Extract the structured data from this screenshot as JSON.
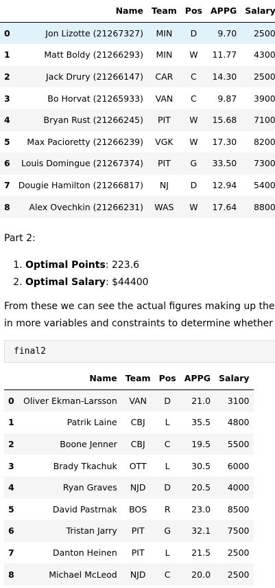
{
  "table1": {
    "columns": [
      "Name",
      "Team",
      "Pos",
      "APPG",
      "Salary"
    ],
    "rows": [
      {
        "idx": "0",
        "name": "Jon Lizotte (21267327)",
        "team": "MIN",
        "pos": "D",
        "appg": "9.70",
        "salary": "2500"
      },
      {
        "idx": "1",
        "name": "Matt Boldy (21266293)",
        "team": "MIN",
        "pos": "W",
        "appg": "11.77",
        "salary": "4300"
      },
      {
        "idx": "2",
        "name": "Jack Drury (21266147)",
        "team": "CAR",
        "pos": "C",
        "appg": "14.30",
        "salary": "2500"
      },
      {
        "idx": "3",
        "name": "Bo Horvat (21265933)",
        "team": "VAN",
        "pos": "C",
        "appg": "9.87",
        "salary": "3900"
      },
      {
        "idx": "4",
        "name": "Bryan Rust (21266245)",
        "team": "PIT",
        "pos": "W",
        "appg": "15.68",
        "salary": "7100"
      },
      {
        "idx": "5",
        "name": "Max Pacioretty (21266239)",
        "team": "VGK",
        "pos": "W",
        "appg": "17.30",
        "salary": "8200"
      },
      {
        "idx": "6",
        "name": "Louis Domingue (21267374)",
        "team": "PIT",
        "pos": "G",
        "appg": "33.50",
        "salary": "7300"
      },
      {
        "idx": "7",
        "name": "Dougie Hamilton (21266817)",
        "team": "NJ",
        "pos": "D",
        "appg": "12.94",
        "salary": "5400"
      },
      {
        "idx": "8",
        "name": "Alex Ovechkin (21266231)",
        "team": "WAS",
        "pos": "W",
        "appg": "17.64",
        "salary": "8800"
      }
    ]
  },
  "part_label": "Part 2:",
  "results": [
    {
      "label": "Optimal Points",
      "value": ": 223.6"
    },
    {
      "label": "Optimal Salary",
      "value": ": $44400"
    }
  ],
  "prose_line1": "From these we can see the actual figures making up the '",
  "prose_line2": "in more variables and constraints to determine whether a",
  "code_cell": "final2",
  "table2": {
    "columns": [
      "Name",
      "Team",
      "Pos",
      "APPG",
      "Salary"
    ],
    "rows": [
      {
        "idx": "0",
        "name": "Oliver Ekman-Larsson",
        "team": "VAN",
        "pos": "D",
        "appg": "21.0",
        "salary": "3100"
      },
      {
        "idx": "1",
        "name": "Patrik Laine",
        "team": "CBJ",
        "pos": "L",
        "appg": "35.5",
        "salary": "4800"
      },
      {
        "idx": "2",
        "name": "Boone Jenner",
        "team": "CBJ",
        "pos": "C",
        "appg": "19.5",
        "salary": "5500"
      },
      {
        "idx": "3",
        "name": "Brady Tkachuk",
        "team": "OTT",
        "pos": "L",
        "appg": "30.5",
        "salary": "6000"
      },
      {
        "idx": "4",
        "name": "Ryan Graves",
        "team": "NJD",
        "pos": "D",
        "appg": "20.5",
        "salary": "4000"
      },
      {
        "idx": "5",
        "name": "David Pastrnak",
        "team": "BOS",
        "pos": "R",
        "appg": "23.0",
        "salary": "8500"
      },
      {
        "idx": "6",
        "name": "Tristan Jarry",
        "team": "PIT",
        "pos": "G",
        "appg": "32.1",
        "salary": "7500"
      },
      {
        "idx": "7",
        "name": "Danton Heinen",
        "team": "PIT",
        "pos": "L",
        "appg": "21.5",
        "salary": "2500"
      },
      {
        "idx": "8",
        "name": "Michael McLeod",
        "team": "NJD",
        "pos": "C",
        "appg": "20.0",
        "salary": "2500"
      }
    ]
  }
}
